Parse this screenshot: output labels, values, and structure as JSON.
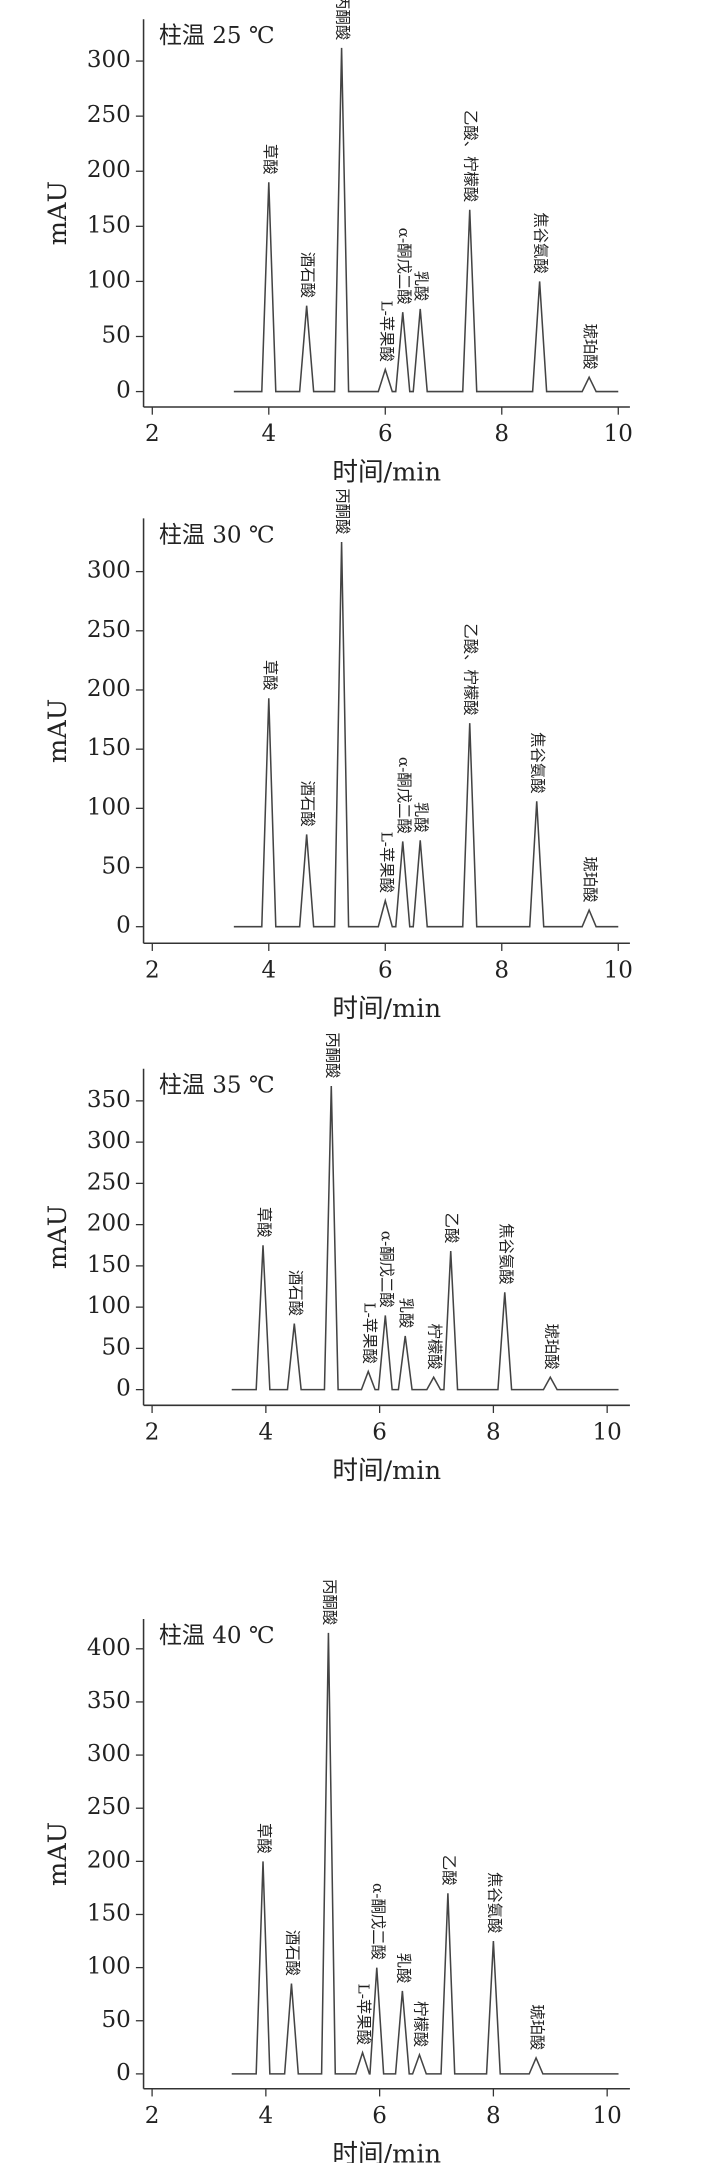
{
  "chart_data": [
    {
      "type": "line",
      "title": "柱温 25 ℃",
      "x_label": "时间/min",
      "y_label": "mAU",
      "color": "#444444",
      "xlim": [
        1.85,
        10.2
      ],
      "xticks": [
        2,
        4,
        6,
        8,
        10
      ],
      "ylim": [
        -14,
        338
      ],
      "yticks": [
        0,
        50,
        100,
        150,
        200,
        250,
        300
      ],
      "x": [
        3.4,
        3.88,
        4.0,
        4.12,
        4.53,
        4.65,
        4.77,
        5.13,
        5.25,
        5.37,
        5.88,
        6.0,
        6.12,
        6.18,
        6.3,
        6.42,
        6.48,
        6.6,
        6.72,
        7.33,
        7.45,
        7.57,
        8.53,
        8.65,
        8.77,
        9.38,
        9.5,
        9.62,
        10.0
      ],
      "values": [
        0,
        0,
        190,
        0,
        0,
        78,
        0,
        0,
        312,
        0,
        0,
        20,
        0,
        0,
        72,
        0,
        0,
        75,
        0,
        0,
        165,
        0,
        0,
        100,
        0,
        0,
        13,
        0,
        0
      ],
      "peak_labels": [
        null,
        null,
        "草酸",
        null,
        null,
        "酒石酸",
        null,
        null,
        "丙酮酸",
        null,
        null,
        "L-苹果酸",
        null,
        null,
        "α-酮戊二酸",
        null,
        null,
        "乳酸",
        null,
        null,
        "乙酸、柠檬酸",
        null,
        null,
        "焦谷氨酸",
        null,
        null,
        "琥珀酸",
        null,
        null
      ]
    },
    {
      "type": "line",
      "title": "柱温 30 ℃",
      "x_label": "时间/min",
      "y_label": "mAU",
      "color": "#444444",
      "xlim": [
        1.85,
        10.2
      ],
      "xticks": [
        2,
        4,
        6,
        8,
        10
      ],
      "ylim": [
        -14,
        345
      ],
      "yticks": [
        0,
        50,
        100,
        150,
        200,
        250,
        300
      ],
      "x": [
        3.4,
        3.88,
        4.0,
        4.12,
        4.53,
        4.65,
        4.77,
        5.13,
        5.25,
        5.37,
        5.88,
        6.0,
        6.12,
        6.18,
        6.3,
        6.42,
        6.48,
        6.6,
        6.72,
        7.33,
        7.45,
        7.57,
        8.48,
        8.6,
        8.72,
        9.38,
        9.5,
        9.62,
        10.0
      ],
      "values": [
        0,
        0,
        193,
        0,
        0,
        78,
        0,
        0,
        325,
        0,
        0,
        22,
        0,
        0,
        72,
        0,
        0,
        73,
        0,
        0,
        172,
        0,
        0,
        106,
        0,
        0,
        14,
        0,
        0
      ],
      "peak_labels": [
        null,
        null,
        "草酸",
        null,
        null,
        "酒石酸",
        null,
        null,
        "丙酮酸",
        null,
        null,
        "L-苹果酸",
        null,
        null,
        "α-酮戊二酸",
        null,
        null,
        "乳酸",
        null,
        null,
        "乙酸、柠檬酸",
        null,
        null,
        "焦谷氨酸",
        null,
        null,
        "琥珀酸",
        null,
        null
      ]
    },
    {
      "type": "line",
      "title": "柱温 35 ℃",
      "x_label": "时间/min",
      "y_label": "mAU",
      "color": "#444444",
      "xlim": [
        1.85,
        10.4
      ],
      "xticks": [
        2,
        4,
        6,
        8,
        10
      ],
      "ylim": [
        -19,
        389
      ],
      "yticks": [
        0,
        50,
        100,
        150,
        200,
        250,
        300,
        350
      ],
      "x": [
        3.4,
        3.83,
        3.95,
        4.07,
        4.38,
        4.5,
        4.62,
        5.03,
        5.15,
        5.27,
        5.68,
        5.8,
        5.92,
        5.98,
        6.1,
        6.22,
        6.33,
        6.45,
        6.57,
        6.83,
        6.95,
        7.07,
        7.13,
        7.25,
        7.37,
        8.08,
        8.2,
        8.32,
        8.88,
        9.0,
        9.12,
        10.2
      ],
      "values": [
        0,
        0,
        175,
        0,
        0,
        80,
        0,
        0,
        368,
        0,
        0,
        22,
        0,
        0,
        90,
        0,
        0,
        65,
        0,
        0,
        15,
        0,
        0,
        168,
        0,
        0,
        118,
        0,
        0,
        15,
        0,
        0
      ],
      "peak_labels": [
        null,
        null,
        "草酸",
        null,
        null,
        "酒石酸",
        null,
        null,
        "丙酮酸",
        null,
        null,
        "L-苹果酸",
        null,
        null,
        "α-酮戊二酸",
        null,
        null,
        "乳酸",
        null,
        null,
        "柠檬酸",
        null,
        null,
        "乙酸",
        null,
        null,
        "焦谷氨酸",
        null,
        null,
        "琥珀酸",
        null,
        null
      ]
    },
    {
      "type": "line",
      "title": "柱温 40 ℃",
      "x_label": "时间/min",
      "y_label": "mAU",
      "color": "#444444",
      "xlim": [
        1.85,
        10.4
      ],
      "xticks": [
        2,
        4,
        6,
        8,
        10
      ],
      "ylim": [
        -14,
        428
      ],
      "yticks": [
        0,
        50,
        100,
        150,
        200,
        250,
        300,
        350,
        400
      ],
      "x": [
        3.4,
        3.83,
        3.95,
        4.07,
        4.33,
        4.45,
        4.57,
        4.98,
        5.1,
        5.22,
        5.58,
        5.7,
        5.82,
        5.83,
        5.95,
        6.07,
        6.28,
        6.4,
        6.52,
        6.58,
        6.7,
        6.82,
        7.08,
        7.2,
        7.32,
        7.88,
        8.0,
        8.12,
        8.63,
        8.75,
        8.87,
        10.2
      ],
      "values": [
        0,
        0,
        200,
        0,
        0,
        85,
        0,
        0,
        415,
        0,
        0,
        20,
        0,
        0,
        100,
        0,
        0,
        78,
        0,
        0,
        18,
        0,
        0,
        170,
        0,
        0,
        125,
        0,
        0,
        15,
        0,
        0
      ],
      "peak_labels": [
        null,
        null,
        "草酸",
        null,
        null,
        "酒石酸",
        null,
        null,
        "丙酮酸",
        null,
        null,
        "L-苹果酸",
        null,
        null,
        "α-酮戊二酸",
        null,
        null,
        "乳酸",
        null,
        null,
        "柠檬酸",
        null,
        null,
        "乙酸",
        null,
        null,
        "焦谷氨酸",
        null,
        null,
        "琥珀酸",
        null,
        null
      ]
    }
  ]
}
